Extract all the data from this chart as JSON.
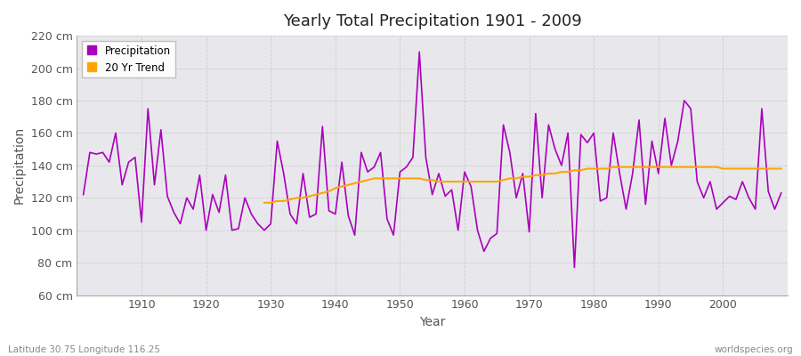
{
  "title": "Yearly Total Precipitation 1901 - 2009",
  "xlabel": "Year",
  "ylabel": "Precipitation",
  "subtitle": "Latitude 30.75 Longitude 116.25",
  "watermark": "worldspecies.org",
  "bg_color": "#ffffff",
  "plot_bg_color": "#e8e8ec",
  "line_color": "#aa00bb",
  "trend_color": "#ffa500",
  "ylim": [
    60,
    220
  ],
  "yticks": [
    60,
    80,
    100,
    120,
    140,
    160,
    180,
    200,
    220
  ],
  "xlim": [
    1900,
    2010
  ],
  "xticks": [
    1910,
    1920,
    1930,
    1940,
    1950,
    1960,
    1970,
    1980,
    1990,
    2000
  ],
  "years": [
    1901,
    1902,
    1903,
    1904,
    1905,
    1906,
    1907,
    1908,
    1909,
    1910,
    1911,
    1912,
    1913,
    1914,
    1915,
    1916,
    1917,
    1918,
    1919,
    1920,
    1921,
    1922,
    1923,
    1924,
    1925,
    1926,
    1927,
    1928,
    1929,
    1930,
    1931,
    1932,
    1933,
    1934,
    1935,
    1936,
    1937,
    1938,
    1939,
    1940,
    1941,
    1942,
    1943,
    1944,
    1945,
    1946,
    1947,
    1948,
    1949,
    1950,
    1951,
    1952,
    1953,
    1954,
    1955,
    1956,
    1957,
    1958,
    1959,
    1960,
    1961,
    1962,
    1963,
    1964,
    1965,
    1966,
    1967,
    1968,
    1969,
    1970,
    1971,
    1972,
    1973,
    1974,
    1975,
    1976,
    1977,
    1978,
    1979,
    1980,
    1981,
    1982,
    1983,
    1984,
    1985,
    1986,
    1987,
    1988,
    1989,
    1990,
    1991,
    1992,
    1993,
    1994,
    1995,
    1996,
    1997,
    1998,
    1999,
    2000,
    2001,
    2002,
    2003,
    2004,
    2005,
    2006,
    2007,
    2008,
    2009
  ],
  "precipitation": [
    122,
    148,
    147,
    148,
    142,
    160,
    128,
    142,
    145,
    105,
    175,
    128,
    162,
    121,
    111,
    104,
    120,
    113,
    134,
    100,
    122,
    111,
    134,
    100,
    101,
    120,
    110,
    104,
    100,
    104,
    155,
    135,
    110,
    104,
    135,
    108,
    110,
    164,
    112,
    110,
    142,
    109,
    97,
    148,
    136,
    139,
    148,
    107,
    97,
    136,
    139,
    145,
    210,
    145,
    122,
    135,
    121,
    125,
    100,
    136,
    127,
    100,
    87,
    95,
    98,
    165,
    148,
    120,
    135,
    99,
    172,
    120,
    165,
    150,
    140,
    160,
    77,
    159,
    154,
    160,
    118,
    120,
    160,
    135,
    113,
    135,
    168,
    116,
    155,
    135,
    169,
    140,
    155,
    180,
    175,
    130,
    120,
    130,
    113,
    117,
    121,
    119,
    130,
    120,
    113,
    175,
    124,
    113,
    123
  ],
  "trend_years": [
    1929,
    1930,
    1931,
    1932,
    1933,
    1934,
    1935,
    1936,
    1937,
    1938,
    1939,
    1940,
    1941,
    1942,
    1943,
    1944,
    1945,
    1946,
    1947,
    1948,
    1949,
    1950,
    1951,
    1952,
    1953,
    1954,
    1955,
    1956,
    1957,
    1958,
    1959,
    1960,
    1961,
    1962,
    1963,
    1964,
    1965,
    1966,
    1967,
    1968,
    1969,
    1970,
    1971,
    1972,
    1973,
    1974,
    1975,
    1976,
    1977,
    1978,
    1979,
    1980,
    1981,
    1982,
    1983,
    1984,
    1985,
    1986,
    1987,
    1988,
    1989,
    1990,
    1991,
    1992,
    1993,
    1994,
    1995,
    1996,
    1997,
    1998,
    1999,
    2000,
    2001,
    2002,
    2003,
    2004,
    2005,
    2006,
    2007,
    2008,
    2009
  ],
  "trend_values": [
    117,
    117,
    118,
    118,
    119,
    120,
    120,
    121,
    122,
    123,
    124,
    126,
    127,
    128,
    129,
    130,
    131,
    132,
    132,
    132,
    132,
    132,
    132,
    132,
    132,
    131,
    131,
    130,
    130,
    130,
    130,
    130,
    130,
    130,
    130,
    130,
    130,
    131,
    132,
    132,
    133,
    133,
    134,
    134,
    135,
    135,
    136,
    136,
    137,
    137,
    138,
    138,
    138,
    138,
    139,
    139,
    139,
    139,
    139,
    139,
    139,
    139,
    139,
    139,
    139,
    139,
    139,
    139,
    139,
    139,
    139,
    138,
    138,
    138,
    138,
    138,
    138,
    138,
    138,
    138,
    138
  ]
}
